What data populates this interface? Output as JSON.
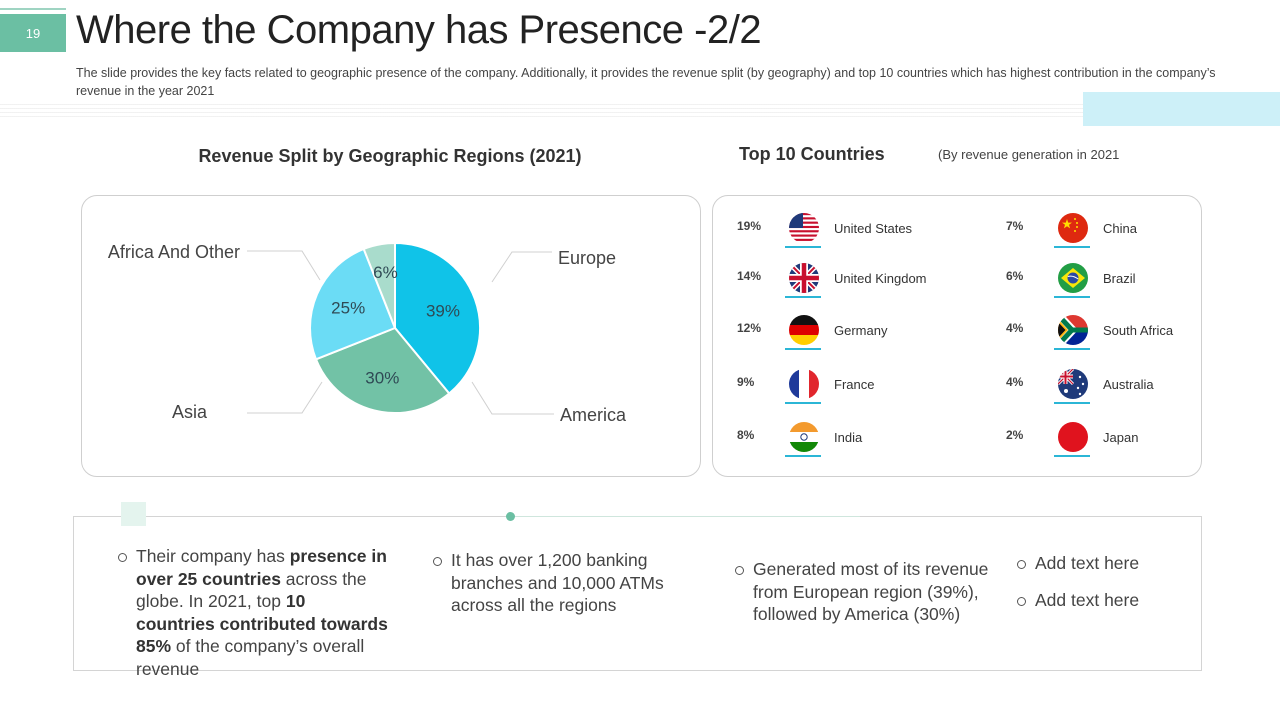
{
  "slide": {
    "number": "19",
    "title": "Where the Company has Presence -2/2",
    "subtitle": "The slide provides the key facts related to geographic presence of the company. Additionally, it provides the revenue split (by geography) and top 10 countries which has highest contribution in the company’s revenue in the year 2021"
  },
  "chart_data": {
    "type": "pie",
    "title": "Revenue Split by Geographic Regions (2021)",
    "unit": "%",
    "slices": [
      {
        "label": "Europe",
        "value": 39,
        "value_label": "39%",
        "color": "#10c3e8"
      },
      {
        "label": "America",
        "value": 30,
        "value_label": "30%",
        "color": "#72c2a6"
      },
      {
        "label": "Asia",
        "value": 25,
        "value_label": "25%",
        "color": "#6bdcf5"
      },
      {
        "label": "Africa And Other",
        "value": 6,
        "value_label": "6%",
        "color": "#a9dccc"
      }
    ]
  },
  "top_countries": {
    "title": "Top 10 Countries",
    "note": "(By revenue generation in 2021",
    "left": [
      {
        "pct": "19%",
        "name": "United States",
        "flag": "us-flag"
      },
      {
        "pct": "14%",
        "name": "United Kingdom",
        "flag": "uk-flag"
      },
      {
        "pct": "12%",
        "name": "Germany",
        "flag": "germany-flag"
      },
      {
        "pct": "9%",
        "name": "France",
        "flag": "france-flag"
      },
      {
        "pct": "8%",
        "name": "India",
        "flag": "india-flag"
      }
    ],
    "right": [
      {
        "pct": "7%",
        "name": "China",
        "flag": "china-flag"
      },
      {
        "pct": "6%",
        "name": "Brazil",
        "flag": "brazil-flag"
      },
      {
        "pct": "4%",
        "name": "South Africa",
        "flag": "south-africa-flag"
      },
      {
        "pct": "4%",
        "name": "Australia",
        "flag": "australia-flag"
      },
      {
        "pct": "2%",
        "name": "Japan",
        "flag": "japan-flag"
      }
    ]
  },
  "facts": {
    "fact1": {
      "t1": "Their company has ",
      "b1": "presence in over 25 countries",
      "t2": " across the globe. In 2021, top ",
      "b2": "10 countries contributed towards 85%",
      "t3": " of the company’s overall revenue"
    },
    "fact2": "It has over 1,200 banking branches and 10,000 ATMs across all the regions",
    "fact3": "Generated most of its revenue from European region (39%), followed by America (30%)",
    "fact4": "Add text here",
    "fact5": "Add text here"
  }
}
